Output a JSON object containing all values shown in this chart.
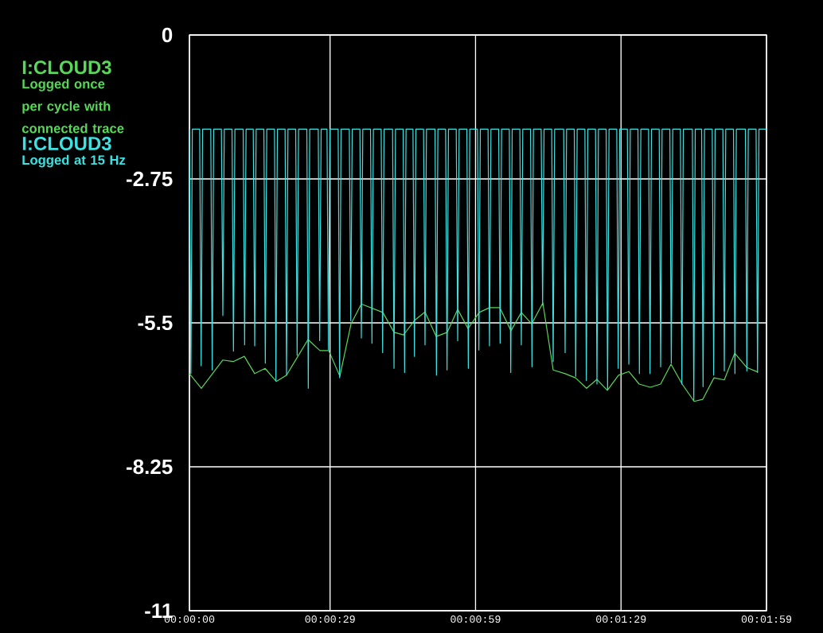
{
  "chart_data": {
    "type": "line",
    "xlim": [
      0,
      119
    ],
    "ylim": [
      -11,
      0
    ],
    "xticks": [
      {
        "value": 0,
        "label": "00:00:00"
      },
      {
        "value": 29,
        "label": "00:00:29"
      },
      {
        "value": 59,
        "label": "00:00:59"
      },
      {
        "value": 89,
        "label": "00:01:29"
      },
      {
        "value": 119,
        "label": "00:01:59"
      }
    ],
    "yticks": [
      -11,
      -8.25,
      -5.5,
      -2.75,
      0
    ],
    "grid": true,
    "legend": "left",
    "annotations": [
      "Logged once per cycle with connected trace",
      "Logged at 15 Hz"
    ],
    "series": [
      {
        "name": "I:CLOUD3",
        "color": "#5ad65a",
        "x": [
          0,
          2.46,
          4.76,
          6.89,
          9.02,
          11.32,
          13.46,
          15.6,
          17.9,
          20.03,
          22.16,
          24.45,
          26.92,
          28.73,
          31.02,
          33.32,
          35.45,
          39.88,
          42.19,
          44.16,
          46.45,
          48.58,
          50.88,
          53.18,
          55.31,
          57.45,
          59.75,
          61.88,
          64.01,
          66.31,
          68.44,
          70.58,
          72.88,
          75.01,
          77.47,
          79.61,
          81.9,
          84.04,
          86.18,
          88.48,
          90.61,
          92.74,
          95.04,
          97.17,
          99.31,
          101.61,
          104.07,
          105.87,
          108.17,
          110.3,
          112.44,
          114.9,
          117.2
        ],
        "values": [
          -6.47,
          -6.75,
          -6.47,
          -6.21,
          -6.24,
          -6.14,
          -6.47,
          -6.37,
          -6.62,
          -6.5,
          -6.17,
          -5.82,
          -6.03,
          -6.03,
          -6.52,
          -5.52,
          -5.14,
          -5.3,
          -5.68,
          -5.73,
          -5.45,
          -5.29,
          -5.76,
          -5.68,
          -5.24,
          -5.61,
          -5.3,
          -5.21,
          -5.21,
          -5.65,
          -5.3,
          -5.52,
          -5.12,
          -6.4,
          -6.47,
          -6.55,
          -6.75,
          -6.58,
          -6.79,
          -6.5,
          -6.43,
          -6.67,
          -6.73,
          -6.67,
          -6.29,
          -6.67,
          -7.0,
          -6.96,
          -6.55,
          -6.59,
          -6.08,
          -6.35,
          -6.44
        ]
      },
      {
        "name": "I:CLOUD3",
        "color": "#40e0e0",
        "x": [
          0,
          0.3,
          0.6,
          2.11,
          2.41,
          2.71,
          4.4,
          4.7,
          5.0,
          6.59,
          6.89,
          7.19,
          8.78,
          9.08,
          9.38,
          11.08,
          11.38,
          11.68,
          13.16,
          13.46,
          13.76,
          15.35,
          15.65,
          15.95,
          17.54,
          17.84,
          18.14,
          19.72,
          20.02,
          20.32,
          21.91,
          22.21,
          22.51,
          24.21,
          24.51,
          24.81,
          26.56,
          26.86,
          27.16,
          28.37,
          28.67,
          28.97,
          30.67,
          30.97,
          31.27,
          32.97,
          33.27,
          33.57,
          35.15,
          35.45,
          35.75,
          37.34,
          37.64,
          37.94,
          39.54,
          39.84,
          40.14,
          41.89,
          42.19,
          42.49,
          44.07,
          44.37,
          44.67,
          46.1,
          46.4,
          46.7,
          48.28,
          48.58,
          48.88,
          50.64,
          50.94,
          51.24,
          52.82,
          53.12,
          53.42,
          55.02,
          55.32,
          55.62,
          57.21,
          57.51,
          57.81,
          59.39,
          59.69,
          59.99,
          61.58,
          61.88,
          62.18,
          63.77,
          64.07,
          64.37,
          65.96,
          66.26,
          66.56,
          68.14,
          68.44,
          68.74,
          70.34,
          70.64,
          70.94,
          72.53,
          72.83,
          73.13,
          74.71,
          75.01,
          75.31,
          77.17,
          77.47,
          77.77,
          79.36,
          79.66,
          79.96,
          81.55,
          81.85,
          82.15,
          83.74,
          84.04,
          84.34,
          85.93,
          86.23,
          86.53,
          88.12,
          88.42,
          88.72,
          90.31,
          90.61,
          90.91,
          92.49,
          92.79,
          93.09,
          94.68,
          94.98,
          95.28,
          96.87,
          97.17,
          97.47,
          99.07,
          99.37,
          99.67,
          101.25,
          101.55,
          101.85,
          103.71,
          104.01,
          104.31,
          105.62,
          105.92,
          106.22,
          107.81,
          108.11,
          108.41,
          110.0,
          110.3,
          110.6,
          112.19,
          112.49,
          112.79,
          114.65,
          114.95,
          115.25,
          116.85,
          117.15,
          117.45,
          119
        ],
        "values": [
          -1.8,
          -6.47,
          -1.8,
          -1.8,
          -6.32,
          -1.8,
          -1.8,
          -6.4,
          -1.8,
          -1.8,
          -5.36,
          -1.8,
          -1.8,
          -6.04,
          -1.8,
          -1.8,
          -5.92,
          -1.8,
          -1.8,
          -5.94,
          -1.8,
          -1.8,
          -6.27,
          -1.8,
          -1.8,
          -6.6,
          -1.8,
          -1.8,
          -6.5,
          -1.8,
          -1.8,
          -6.12,
          -1.8,
          -1.8,
          -6.75,
          -1.8,
          -1.8,
          -5.84,
          -1.8,
          -1.8,
          -6.02,
          -1.8,
          -1.8,
          -6.55,
          -1.8,
          -1.8,
          -5.46,
          -1.8,
          -1.8,
          -5.79,
          -1.8,
          -1.8,
          -5.89,
          -1.8,
          -1.8,
          -6.07,
          -1.8,
          -1.8,
          -6.37,
          -1.8,
          -1.8,
          -6.45,
          -1.8,
          -1.8,
          -6.14,
          -1.8,
          -1.8,
          -5.92,
          -1.8,
          -1.8,
          -6.5,
          -1.8,
          -1.8,
          -6.4,
          -1.8,
          -1.8,
          -5.84,
          -1.8,
          -1.8,
          -6.37,
          -1.8,
          -1.8,
          -6.02,
          -1.8,
          -1.8,
          -5.94,
          -1.8,
          -1.8,
          -5.89,
          -1.8,
          -1.8,
          -6.45,
          -1.8,
          -1.8,
          -5.92,
          -1.8,
          -1.8,
          -6.34,
          -1.8,
          -1.8,
          -5.16,
          -1.8,
          -1.8,
          -6.24,
          -1.8,
          -1.8,
          -6.07,
          -1.8,
          -1.8,
          -6.52,
          -1.8,
          -1.8,
          -6.6,
          -1.8,
          -1.8,
          -6.67,
          -1.8,
          -1.8,
          -6.78,
          -1.8,
          -1.8,
          -6.37,
          -1.8,
          -1.8,
          -6.29,
          -1.8,
          -1.8,
          -6.47,
          -1.8,
          -1.8,
          -6.47,
          -1.8,
          -1.8,
          -6.34,
          -1.8,
          -1.8,
          -6.27,
          -1.8,
          -1.8,
          -6.67,
          -1.8,
          -1.8,
          -6.98,
          -1.8,
          -1.8,
          -6.72,
          -1.8,
          -1.8,
          -6.5,
          -1.8,
          -1.8,
          -6.42,
          -1.8,
          -1.8,
          -6.47,
          -1.8,
          -1.8,
          -6.42,
          -1.8,
          -1.8,
          -6.45,
          -1.8,
          -1.8
        ]
      }
    ]
  }
}
